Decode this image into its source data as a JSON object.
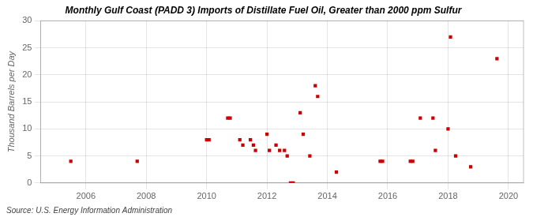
{
  "chart_data": {
    "type": "scatter",
    "title": "Monthly Gulf Coast (PADD 3) Imports of Distillate Fuel Oil, Greater than 2000 ppm Sulfur",
    "y_label": "Thousand Barrels per Day",
    "annotation": "Source: U.S. Energy Information Administration",
    "x": [
      2005.5,
      2007.7,
      2010.0,
      2010.08,
      2010.7,
      2010.78,
      2011.1,
      2011.2,
      2011.45,
      2011.55,
      2011.62,
      2012.0,
      2012.08,
      2012.3,
      2012.42,
      2012.58,
      2012.67,
      2012.78,
      2012.87,
      2013.1,
      2013.2,
      2013.42,
      2013.6,
      2013.68,
      2014.3,
      2015.75,
      2015.83,
      2016.75,
      2016.83,
      2017.08,
      2017.5,
      2017.58,
      2018.0,
      2018.08,
      2018.25,
      2018.75,
      2019.62
    ],
    "values": [
      4,
      4,
      8,
      8,
      12,
      12,
      8,
      7,
      8,
      7,
      6,
      9,
      6,
      7,
      6,
      6,
      5,
      0,
      0,
      13,
      9,
      5,
      18,
      16,
      2,
      4,
      4,
      4,
      4,
      12,
      12,
      6,
      10,
      27,
      5,
      3,
      23
    ],
    "color": "#cc0000",
    "marker": "square",
    "xlim": [
      2004.5,
      2020.5
    ],
    "xticks": [
      2006,
      2008,
      2010,
      2012,
      2014,
      2016,
      2018,
      2020
    ],
    "ylim": [
      0,
      30
    ],
    "yticks": [
      0,
      5,
      10,
      15,
      20,
      25,
      30
    ],
    "grid": true
  }
}
